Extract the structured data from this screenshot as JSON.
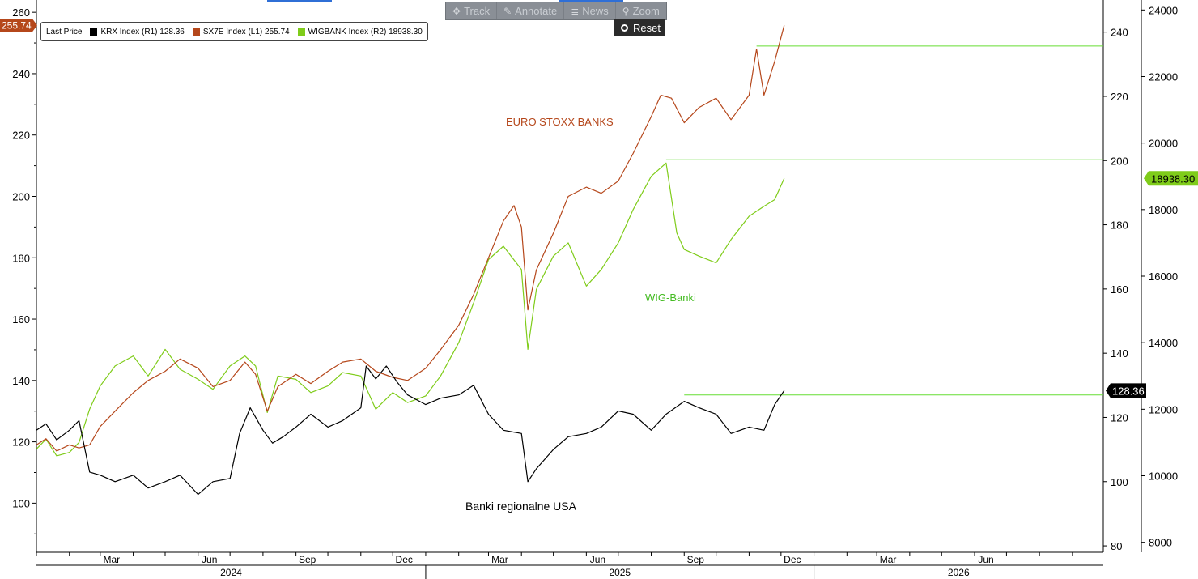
{
  "toolbar": {
    "track": "Track",
    "annotate": "Annotate",
    "news": "News",
    "zoom": "Zoom",
    "reset": "Reset"
  },
  "legend": {
    "title": "Last Price",
    "items": [
      {
        "label": "KRX Index  (R1) 128.36",
        "color": "#000000"
      },
      {
        "label": "SX7E Index  (L1) 255.74",
        "color": "#b5471b"
      },
      {
        "label": "WIGBANK Index  (R2) 18938.30",
        "color": "#7fcc1a"
      }
    ]
  },
  "annotations": {
    "euro": "EURO STOXX BANKS",
    "wig": "WIG-Banki",
    "usa": "Banki regionalne USA"
  },
  "colors": {
    "krx": "#000000",
    "sx7e": "#b5471b",
    "wig": "#7fcc1a",
    "guide": "#66dd33"
  },
  "chart_data": {
    "type": "line",
    "x_ticks": [
      "Mar",
      "Jun",
      "Sep",
      "Dec",
      "Mar",
      "Jun",
      "Sep",
      "Dec",
      "Mar",
      "Jun"
    ],
    "years": [
      "2024",
      "2025",
      "2026"
    ],
    "axes": {
      "left": {
        "series": "SX7E Index",
        "ylim": [
          84,
          264
        ],
        "ticks": [
          100,
          120,
          140,
          160,
          180,
          200,
          220,
          240,
          260
        ]
      },
      "right1": {
        "series": "KRX Index",
        "ylim": [
          78,
          250
        ],
        "ticks": [
          80,
          100,
          120,
          140,
          160,
          180,
          200,
          220,
          240
        ]
      },
      "right2": {
        "series": "WIGBANK Index",
        "ylim": [
          7700,
          24300
        ],
        "ticks": [
          8000,
          10000,
          12000,
          14000,
          16000,
          18000,
          20000,
          22000,
          24000
        ]
      }
    },
    "last_values": {
      "sx7e": "255.74",
      "krx": "128.36",
      "wig": "18938.30"
    },
    "reference_lines": [
      {
        "series": "SX7E Index",
        "value": 249
      },
      {
        "series": "WIGBANK Index",
        "value": 19500
      },
      {
        "series": "KRX Index",
        "value": 127
      }
    ],
    "series": [
      {
        "name": "KRX Index",
        "axis": "right1",
        "points": [
          [
            "2024-01-01",
            116
          ],
          [
            "2024-01-10",
            118
          ],
          [
            "2024-01-20",
            113
          ],
          [
            "2024-02-01",
            116
          ],
          [
            "2024-02-10",
            119
          ],
          [
            "2024-02-20",
            103
          ],
          [
            "2024-03-01",
            102
          ],
          [
            "2024-03-15",
            100
          ],
          [
            "2024-04-01",
            102
          ],
          [
            "2024-04-15",
            98
          ],
          [
            "2024-05-01",
            100
          ],
          [
            "2024-05-15",
            102
          ],
          [
            "2024-06-01",
            96
          ],
          [
            "2024-06-15",
            100
          ],
          [
            "2024-07-01",
            101
          ],
          [
            "2024-07-10",
            115
          ],
          [
            "2024-07-20",
            123
          ],
          [
            "2024-08-01",
            116
          ],
          [
            "2024-08-10",
            112
          ],
          [
            "2024-08-20",
            114
          ],
          [
            "2024-09-01",
            117
          ],
          [
            "2024-09-15",
            121
          ],
          [
            "2024-10-01",
            117
          ],
          [
            "2024-10-15",
            119
          ],
          [
            "2024-11-01",
            123
          ],
          [
            "2024-11-06",
            136
          ],
          [
            "2024-11-15",
            132
          ],
          [
            "2024-11-25",
            136
          ],
          [
            "2024-12-05",
            131
          ],
          [
            "2024-12-15",
            127
          ],
          [
            "2025-01-01",
            124
          ],
          [
            "2025-01-15",
            126
          ],
          [
            "2025-02-01",
            127
          ],
          [
            "2025-02-15",
            130
          ],
          [
            "2025-03-01",
            121
          ],
          [
            "2025-03-15",
            116
          ],
          [
            "2025-04-01",
            115
          ],
          [
            "2025-04-07",
            100
          ],
          [
            "2025-04-15",
            104
          ],
          [
            "2025-05-01",
            110
          ],
          [
            "2025-05-15",
            114
          ],
          [
            "2025-06-01",
            115
          ],
          [
            "2025-06-15",
            117
          ],
          [
            "2025-07-01",
            122
          ],
          [
            "2025-07-15",
            121
          ],
          [
            "2025-08-01",
            116
          ],
          [
            "2025-08-15",
            121
          ],
          [
            "2025-09-01",
            125
          ],
          [
            "2025-09-15",
            123
          ],
          [
            "2025-10-01",
            121
          ],
          [
            "2025-10-15",
            115
          ],
          [
            "2025-11-01",
            117
          ],
          [
            "2025-11-15",
            116
          ],
          [
            "2025-11-25",
            124
          ],
          [
            "2025-12-04",
            128.36
          ]
        ]
      },
      {
        "name": "SX7E Index",
        "axis": "left",
        "points": [
          [
            "2024-01-01",
            119
          ],
          [
            "2024-01-10",
            121
          ],
          [
            "2024-01-20",
            117
          ],
          [
            "2024-02-01",
            119
          ],
          [
            "2024-02-10",
            118
          ],
          [
            "2024-02-20",
            119
          ],
          [
            "2024-03-01",
            125
          ],
          [
            "2024-03-15",
            130
          ],
          [
            "2024-04-01",
            136
          ],
          [
            "2024-04-15",
            140
          ],
          [
            "2024-05-01",
            143
          ],
          [
            "2024-05-15",
            147
          ],
          [
            "2024-06-01",
            144
          ],
          [
            "2024-06-15",
            138
          ],
          [
            "2024-07-01",
            140
          ],
          [
            "2024-07-15",
            146
          ],
          [
            "2024-07-25",
            142
          ],
          [
            "2024-08-05",
            130
          ],
          [
            "2024-08-15",
            138
          ],
          [
            "2024-09-01",
            142
          ],
          [
            "2024-09-15",
            139
          ],
          [
            "2024-10-01",
            143
          ],
          [
            "2024-10-15",
            146
          ],
          [
            "2024-11-01",
            147
          ],
          [
            "2024-11-15",
            143
          ],
          [
            "2024-12-01",
            141
          ],
          [
            "2024-12-15",
            140
          ],
          [
            "2025-01-01",
            144
          ],
          [
            "2025-01-15",
            150
          ],
          [
            "2025-02-01",
            158
          ],
          [
            "2025-02-15",
            168
          ],
          [
            "2025-03-01",
            180
          ],
          [
            "2025-03-15",
            192
          ],
          [
            "2025-03-25",
            197
          ],
          [
            "2025-04-01",
            190
          ],
          [
            "2025-04-07",
            163
          ],
          [
            "2025-04-15",
            176
          ],
          [
            "2025-05-01",
            188
          ],
          [
            "2025-05-15",
            200
          ],
          [
            "2025-06-01",
            203
          ],
          [
            "2025-06-15",
            201
          ],
          [
            "2025-07-01",
            205
          ],
          [
            "2025-07-15",
            214
          ],
          [
            "2025-08-01",
            226
          ],
          [
            "2025-08-10",
            233
          ],
          [
            "2025-08-20",
            232
          ],
          [
            "2025-09-01",
            224
          ],
          [
            "2025-09-15",
            229
          ],
          [
            "2025-10-01",
            232
          ],
          [
            "2025-10-15",
            225
          ],
          [
            "2025-11-01",
            233
          ],
          [
            "2025-11-08",
            248
          ],
          [
            "2025-11-15",
            233
          ],
          [
            "2025-11-25",
            244
          ],
          [
            "2025-12-04",
            255.74
          ]
        ]
      },
      {
        "name": "WIGBANK Index",
        "axis": "right2",
        "points": [
          [
            "2024-01-01",
            10800
          ],
          [
            "2024-01-10",
            11100
          ],
          [
            "2024-01-20",
            10600
          ],
          [
            "2024-02-01",
            10700
          ],
          [
            "2024-02-10",
            11000
          ],
          [
            "2024-02-20",
            12000
          ],
          [
            "2024-03-01",
            12700
          ],
          [
            "2024-03-15",
            13300
          ],
          [
            "2024-04-01",
            13600
          ],
          [
            "2024-04-15",
            13000
          ],
          [
            "2024-05-01",
            13800
          ],
          [
            "2024-05-15",
            13200
          ],
          [
            "2024-06-01",
            12900
          ],
          [
            "2024-06-15",
            12600
          ],
          [
            "2024-07-01",
            13300
          ],
          [
            "2024-07-15",
            13600
          ],
          [
            "2024-07-25",
            13300
          ],
          [
            "2024-08-05",
            11900
          ],
          [
            "2024-08-15",
            13000
          ],
          [
            "2024-09-01",
            12900
          ],
          [
            "2024-09-15",
            12500
          ],
          [
            "2024-10-01",
            12700
          ],
          [
            "2024-10-15",
            13100
          ],
          [
            "2024-11-01",
            13000
          ],
          [
            "2024-11-15",
            12000
          ],
          [
            "2024-12-01",
            12500
          ],
          [
            "2024-12-15",
            12200
          ],
          [
            "2025-01-01",
            12400
          ],
          [
            "2025-01-15",
            13000
          ],
          [
            "2025-02-01",
            14000
          ],
          [
            "2025-02-15",
            15200
          ],
          [
            "2025-03-01",
            16500
          ],
          [
            "2025-03-15",
            16900
          ],
          [
            "2025-04-01",
            16200
          ],
          [
            "2025-04-07",
            13800
          ],
          [
            "2025-04-15",
            15600
          ],
          [
            "2025-05-01",
            16600
          ],
          [
            "2025-05-15",
            17000
          ],
          [
            "2025-06-01",
            15700
          ],
          [
            "2025-06-15",
            16200
          ],
          [
            "2025-07-01",
            17000
          ],
          [
            "2025-07-15",
            18000
          ],
          [
            "2025-08-01",
            19000
          ],
          [
            "2025-08-15",
            19400
          ],
          [
            "2025-08-25",
            17300
          ],
          [
            "2025-09-01",
            16800
          ],
          [
            "2025-09-15",
            16600
          ],
          [
            "2025-10-01",
            16400
          ],
          [
            "2025-10-15",
            17100
          ],
          [
            "2025-11-01",
            17800
          ],
          [
            "2025-11-15",
            18100
          ],
          [
            "2025-11-25",
            18300
          ],
          [
            "2025-12-04",
            18938.3
          ]
        ]
      }
    ]
  }
}
